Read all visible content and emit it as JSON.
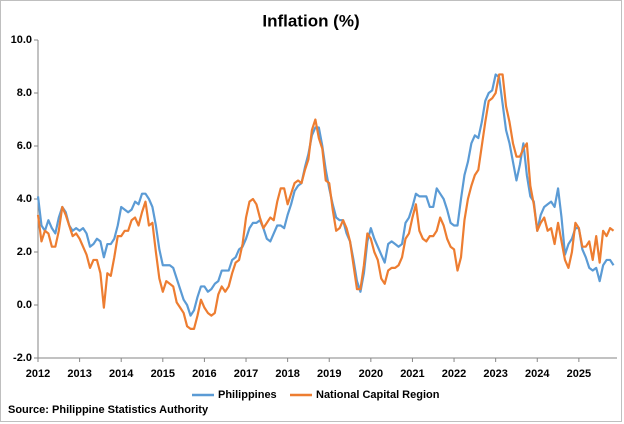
{
  "chart_data": {
    "type": "line",
    "title": "Inflation (%)",
    "source": "Source: Philippine Statistics Authority",
    "categories": [
      "2012",
      null,
      null,
      null,
      null,
      null,
      null,
      null,
      null,
      null,
      null,
      null,
      "2013",
      null,
      null,
      null,
      null,
      null,
      null,
      null,
      null,
      null,
      null,
      null,
      "2014",
      null,
      null,
      null,
      null,
      null,
      null,
      null,
      null,
      null,
      null,
      null,
      "2015",
      null,
      null,
      null,
      null,
      null,
      null,
      null,
      null,
      null,
      null,
      null,
      "2016",
      null,
      null,
      null,
      null,
      null,
      null,
      null,
      null,
      null,
      null,
      null,
      "2017",
      null,
      null,
      null,
      null,
      null,
      null,
      null,
      null,
      null,
      null,
      null,
      "2018",
      null,
      null,
      null,
      null,
      null,
      null,
      null,
      null,
      null,
      null,
      null,
      "2019",
      null,
      null,
      null,
      null,
      null,
      null,
      null,
      null,
      null,
      null,
      null,
      "2020",
      null,
      null,
      null,
      null,
      null,
      null,
      null,
      null,
      null,
      null,
      null,
      "2021",
      null,
      null,
      null,
      null,
      null,
      null,
      null,
      null,
      null,
      null,
      null,
      "2022",
      null,
      null,
      null,
      null,
      null,
      null,
      null,
      null,
      null,
      null,
      null,
      "2023",
      null,
      null,
      null,
      null,
      null,
      null,
      null,
      null,
      null,
      null,
      null,
      "2024",
      null,
      null,
      null,
      null,
      null,
      null,
      null,
      null,
      null,
      null,
      null,
      "2025",
      null,
      null,
      null,
      null,
      null,
      null,
      null,
      null,
      null,
      null
    ],
    "series": [
      {
        "name": "Philippines",
        "color": "#5b9bd5",
        "values": [
          4.1,
          3.0,
          2.8,
          3.2,
          2.9,
          2.7,
          3.3,
          3.7,
          3.5,
          3.0,
          2.8,
          2.9,
          2.8,
          2.9,
          2.7,
          2.2,
          2.3,
          2.5,
          2.4,
          1.8,
          2.3,
          2.3,
          2.5,
          3.0,
          3.7,
          3.6,
          3.5,
          3.6,
          3.9,
          3.8,
          4.2,
          4.2,
          4.0,
          3.7,
          3.0,
          2.1,
          1.5,
          1.5,
          1.5,
          1.4,
          1.0,
          0.6,
          0.2,
          0.0,
          -0.4,
          -0.2,
          0.3,
          0.7,
          0.7,
          0.5,
          0.6,
          0.8,
          0.9,
          1.3,
          1.3,
          1.3,
          1.7,
          1.8,
          2.1,
          2.2,
          2.5,
          2.9,
          3.1,
          3.1,
          3.2,
          2.9,
          2.5,
          2.4,
          2.7,
          3.0,
          3.0,
          2.9,
          3.4,
          3.8,
          4.3,
          4.5,
          4.6,
          5.2,
          5.7,
          6.4,
          6.7,
          6.7,
          6.0,
          5.1,
          4.4,
          3.8,
          3.3,
          3.2,
          3.2,
          2.7,
          2.4,
          1.7,
          0.9,
          0.5,
          1.2,
          2.4,
          2.9,
          2.5,
          2.2,
          1.9,
          1.6,
          2.3,
          2.4,
          2.3,
          2.2,
          2.3,
          3.1,
          3.3,
          3.7,
          4.2,
          4.1,
          4.1,
          4.1,
          3.7,
          3.7,
          4.4,
          4.2,
          4.0,
          3.6,
          3.1,
          3.0,
          3.0,
          4.0,
          4.9,
          5.4,
          6.1,
          6.4,
          6.3,
          6.9,
          7.7,
          8.0,
          8.1,
          8.7,
          8.6,
          7.6,
          6.6,
          6.1,
          5.4,
          4.7,
          5.3,
          6.1,
          4.9,
          4.1,
          3.9,
          2.8,
          3.4,
          3.7,
          3.8,
          3.9,
          3.7,
          4.4,
          3.3,
          1.9,
          2.3,
          2.5,
          2.9,
          2.9,
          2.1,
          1.8,
          1.4,
          1.3,
          1.4,
          0.9,
          1.5,
          1.7,
          1.7,
          1.5
        ]
      },
      {
        "name": "National Capital Region",
        "color": "#ed7d31",
        "values": [
          3.4,
          2.4,
          2.8,
          2.7,
          2.2,
          2.2,
          2.8,
          3.7,
          3.4,
          3.0,
          2.6,
          2.7,
          2.5,
          2.2,
          1.9,
          1.4,
          1.7,
          1.7,
          1.2,
          -0.1,
          1.2,
          1.1,
          1.8,
          2.6,
          2.6,
          2.8,
          2.8,
          3.2,
          3.3,
          3.0,
          3.5,
          3.9,
          3.0,
          3.1,
          2.0,
          1.0,
          0.5,
          0.9,
          0.8,
          0.7,
          0.1,
          -0.1,
          -0.3,
          -0.8,
          -0.9,
          -0.9,
          -0.4,
          0.2,
          -0.1,
          -0.3,
          -0.4,
          -0.3,
          0.4,
          0.7,
          0.5,
          0.7,
          1.2,
          1.6,
          1.7,
          2.3,
          3.3,
          3.9,
          4.0,
          3.8,
          3.3,
          2.9,
          3.1,
          3.3,
          3.2,
          3.9,
          4.4,
          4.4,
          3.8,
          4.2,
          4.6,
          4.7,
          4.6,
          5.1,
          5.5,
          6.6,
          7.0,
          6.3,
          5.9,
          4.7,
          4.6,
          3.6,
          2.8,
          2.9,
          3.2,
          2.9,
          2.4,
          1.5,
          0.6,
          0.6,
          1.5,
          2.7,
          2.5,
          2.0,
          1.7,
          1.0,
          0.8,
          1.3,
          1.4,
          1.4,
          1.5,
          1.8,
          2.5,
          2.7,
          3.3,
          3.8,
          2.8,
          2.5,
          2.4,
          2.6,
          2.6,
          2.8,
          3.3,
          3.0,
          2.5,
          2.2,
          2.1,
          1.3,
          1.8,
          3.2,
          4.0,
          4.5,
          4.9,
          5.1,
          6.0,
          6.9,
          7.7,
          7.8,
          8.0,
          8.7,
          8.7,
          7.5,
          6.9,
          6.1,
          5.6,
          5.6,
          5.9,
          6.1,
          4.5,
          3.8,
          2.8,
          3.1,
          3.3,
          2.8,
          2.9,
          2.3,
          3.1,
          2.4,
          1.7,
          1.4,
          2.0,
          3.1,
          2.9,
          2.2,
          2.2,
          2.4,
          1.7,
          2.6,
          1.6,
          2.8,
          2.6,
          2.9,
          2.8
        ]
      }
    ],
    "ylim": [
      -2,
      10
    ],
    "yticks": [
      {
        "value": -2,
        "label": "-2.0"
      },
      {
        "value": 0,
        "label": "0.0"
      },
      {
        "value": 2,
        "label": "2.0"
      },
      {
        "value": 4,
        "label": "4.0"
      },
      {
        "value": 6,
        "label": "6.0"
      },
      {
        "value": 8,
        "label": "8.0"
      },
      {
        "value": 10,
        "label": "10.0"
      }
    ],
    "grid": false
  }
}
